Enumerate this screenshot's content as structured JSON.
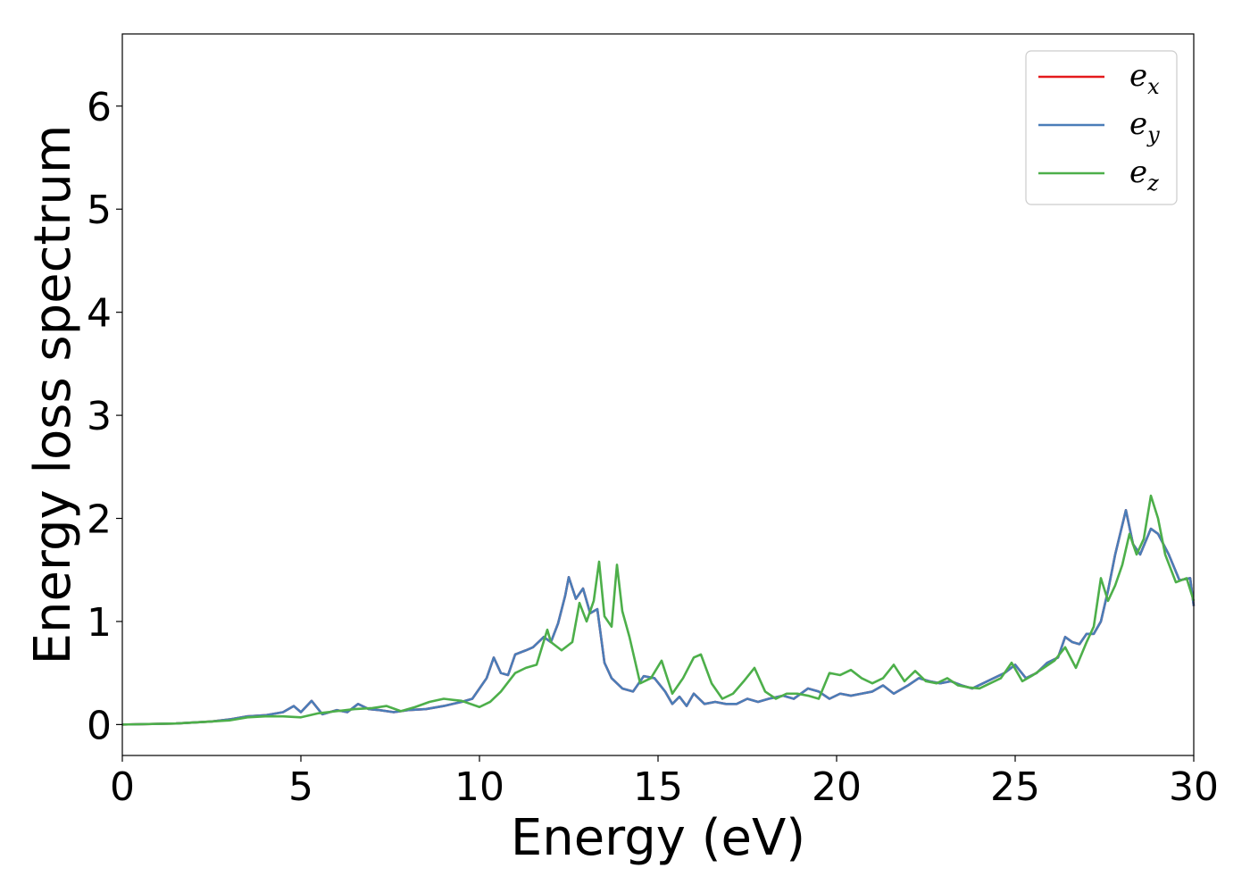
{
  "chart_data": {
    "type": "line",
    "title": "",
    "xlabel": "Energy (eV)",
    "ylabel": "Energy loss spectrum",
    "xlim": [
      0,
      30
    ],
    "ylim": [
      -0.3,
      6.7
    ],
    "xticks": [
      0,
      5,
      10,
      15,
      20,
      25,
      30
    ],
    "yticks": [
      0,
      1,
      2,
      3,
      4,
      5,
      6
    ],
    "grid": false,
    "legend_position": "top-right",
    "series": [
      {
        "name": "e_x",
        "legend_base": "e",
        "legend_sub": "x",
        "color": "#e41a1c",
        "x": [
          0,
          1.5,
          2.5,
          3.0,
          3.5,
          4.0,
          4.5,
          4.8,
          5.0,
          5.3,
          5.6,
          6.0,
          6.3,
          6.6,
          6.9,
          7.2,
          7.6,
          8.0,
          8.5,
          9.0,
          9.5,
          9.8,
          10.0,
          10.2,
          10.4,
          10.6,
          10.8,
          11.0,
          11.3,
          11.5,
          11.8,
          12.0,
          12.2,
          12.4,
          12.5,
          12.7,
          12.9,
          13.1,
          13.3,
          13.5,
          13.7,
          14.0,
          14.3,
          14.6,
          14.9,
          15.2,
          15.4,
          15.6,
          15.8,
          16.0,
          16.3,
          16.6,
          16.9,
          17.2,
          17.5,
          17.8,
          18.1,
          18.5,
          18.8,
          19.2,
          19.5,
          19.8,
          20.1,
          20.4,
          20.7,
          21.0,
          21.3,
          21.6,
          22.0,
          22.3,
          22.6,
          22.9,
          23.2,
          23.5,
          23.8,
          24.1,
          24.4,
          24.7,
          25.0,
          25.3,
          25.6,
          25.9,
          26.2,
          26.4,
          26.6,
          26.8,
          27.0,
          27.2,
          27.4,
          27.6,
          27.8,
          28.1,
          28.3,
          28.5,
          28.8,
          29.0,
          29.3,
          29.6,
          29.9,
          30.0
        ],
        "y": [
          0,
          0.01,
          0.03,
          0.05,
          0.08,
          0.09,
          0.12,
          0.18,
          0.12,
          0.23,
          0.1,
          0.14,
          0.12,
          0.2,
          0.15,
          0.14,
          0.12,
          0.14,
          0.15,
          0.18,
          0.22,
          0.25,
          0.35,
          0.45,
          0.65,
          0.5,
          0.48,
          0.68,
          0.72,
          0.75,
          0.85,
          0.8,
          0.98,
          1.25,
          1.43,
          1.22,
          1.32,
          1.08,
          1.12,
          0.6,
          0.45,
          0.35,
          0.32,
          0.47,
          0.45,
          0.32,
          0.2,
          0.27,
          0.18,
          0.3,
          0.2,
          0.22,
          0.2,
          0.2,
          0.25,
          0.22,
          0.25,
          0.28,
          0.25,
          0.35,
          0.32,
          0.25,
          0.3,
          0.28,
          0.3,
          0.32,
          0.38,
          0.3,
          0.38,
          0.45,
          0.42,
          0.4,
          0.42,
          0.38,
          0.35,
          0.4,
          0.45,
          0.5,
          0.58,
          0.45,
          0.5,
          0.6,
          0.65,
          0.85,
          0.8,
          0.78,
          0.88,
          0.88,
          1.0,
          1.3,
          1.65,
          2.08,
          1.75,
          1.65,
          1.9,
          1.85,
          1.65,
          1.4,
          1.42,
          1.15
        ]
      },
      {
        "name": "e_y",
        "legend_base": "e",
        "legend_sub": "y",
        "color": "#4a7db8",
        "x": [
          0,
          1.5,
          2.5,
          3.0,
          3.5,
          4.0,
          4.5,
          4.8,
          5.0,
          5.3,
          5.6,
          6.0,
          6.3,
          6.6,
          6.9,
          7.2,
          7.6,
          8.0,
          8.5,
          9.0,
          9.5,
          9.8,
          10.0,
          10.2,
          10.4,
          10.6,
          10.8,
          11.0,
          11.3,
          11.5,
          11.8,
          12.0,
          12.2,
          12.4,
          12.5,
          12.7,
          12.9,
          13.1,
          13.3,
          13.5,
          13.7,
          14.0,
          14.3,
          14.6,
          14.9,
          15.2,
          15.4,
          15.6,
          15.8,
          16.0,
          16.3,
          16.6,
          16.9,
          17.2,
          17.5,
          17.8,
          18.1,
          18.5,
          18.8,
          19.2,
          19.5,
          19.8,
          20.1,
          20.4,
          20.7,
          21.0,
          21.3,
          21.6,
          22.0,
          22.3,
          22.6,
          22.9,
          23.2,
          23.5,
          23.8,
          24.1,
          24.4,
          24.7,
          25.0,
          25.3,
          25.6,
          25.9,
          26.2,
          26.4,
          26.6,
          26.8,
          27.0,
          27.2,
          27.4,
          27.6,
          27.8,
          28.1,
          28.3,
          28.5,
          28.8,
          29.0,
          29.3,
          29.6,
          29.9,
          30.0
        ],
        "y": [
          0,
          0.01,
          0.03,
          0.05,
          0.08,
          0.09,
          0.12,
          0.18,
          0.12,
          0.23,
          0.1,
          0.14,
          0.12,
          0.2,
          0.15,
          0.14,
          0.12,
          0.14,
          0.15,
          0.18,
          0.22,
          0.25,
          0.35,
          0.45,
          0.65,
          0.5,
          0.48,
          0.68,
          0.72,
          0.75,
          0.85,
          0.8,
          0.98,
          1.25,
          1.43,
          1.22,
          1.32,
          1.08,
          1.12,
          0.6,
          0.45,
          0.35,
          0.32,
          0.47,
          0.45,
          0.32,
          0.2,
          0.27,
          0.18,
          0.3,
          0.2,
          0.22,
          0.2,
          0.2,
          0.25,
          0.22,
          0.25,
          0.28,
          0.25,
          0.35,
          0.32,
          0.25,
          0.3,
          0.28,
          0.3,
          0.32,
          0.38,
          0.3,
          0.38,
          0.45,
          0.42,
          0.4,
          0.42,
          0.38,
          0.35,
          0.4,
          0.45,
          0.5,
          0.58,
          0.45,
          0.5,
          0.6,
          0.65,
          0.85,
          0.8,
          0.78,
          0.88,
          0.88,
          1.0,
          1.3,
          1.65,
          2.08,
          1.75,
          1.65,
          1.9,
          1.85,
          1.65,
          1.4,
          1.42,
          1.15
        ]
      },
      {
        "name": "e_z",
        "legend_base": "e",
        "legend_sub": "z",
        "color": "#4daf4a",
        "x": [
          0,
          1.5,
          2.5,
          3.0,
          3.5,
          4.0,
          4.5,
          5.0,
          5.5,
          6.0,
          6.5,
          7.0,
          7.4,
          7.8,
          8.2,
          8.6,
          9.0,
          9.5,
          10.0,
          10.3,
          10.6,
          11.0,
          11.3,
          11.6,
          11.9,
          12.0,
          12.3,
          12.6,
          12.8,
          13.0,
          13.2,
          13.35,
          13.5,
          13.7,
          13.85,
          14.0,
          14.2,
          14.5,
          14.8,
          15.1,
          15.4,
          15.7,
          16.0,
          16.2,
          16.5,
          16.8,
          17.1,
          17.4,
          17.7,
          18.0,
          18.3,
          18.6,
          18.9,
          19.2,
          19.5,
          19.8,
          20.1,
          20.4,
          20.7,
          21.0,
          21.3,
          21.6,
          21.9,
          22.2,
          22.5,
          22.8,
          23.1,
          23.4,
          23.7,
          24.0,
          24.3,
          24.6,
          24.9,
          25.2,
          25.5,
          25.8,
          26.1,
          26.4,
          26.7,
          27.0,
          27.2,
          27.4,
          27.6,
          27.8,
          28.0,
          28.2,
          28.4,
          28.6,
          28.8,
          29.0,
          29.2,
          29.5,
          29.8,
          30.0
        ],
        "y": [
          0,
          0.01,
          0.03,
          0.04,
          0.07,
          0.08,
          0.08,
          0.07,
          0.11,
          0.13,
          0.15,
          0.16,
          0.18,
          0.13,
          0.17,
          0.22,
          0.25,
          0.23,
          0.17,
          0.22,
          0.32,
          0.5,
          0.55,
          0.58,
          0.92,
          0.8,
          0.72,
          0.8,
          1.18,
          1.0,
          1.2,
          1.58,
          1.05,
          0.95,
          1.55,
          1.1,
          0.85,
          0.4,
          0.45,
          0.62,
          0.3,
          0.45,
          0.65,
          0.68,
          0.4,
          0.25,
          0.3,
          0.42,
          0.55,
          0.32,
          0.25,
          0.3,
          0.3,
          0.28,
          0.25,
          0.5,
          0.48,
          0.53,
          0.45,
          0.4,
          0.45,
          0.58,
          0.42,
          0.52,
          0.42,
          0.4,
          0.45,
          0.38,
          0.36,
          0.35,
          0.4,
          0.45,
          0.6,
          0.42,
          0.48,
          0.55,
          0.62,
          0.75,
          0.55,
          0.8,
          0.95,
          1.42,
          1.2,
          1.35,
          1.55,
          1.85,
          1.65,
          1.8,
          2.22,
          2.0,
          1.65,
          1.38,
          1.42,
          1.2
        ]
      }
    ]
  }
}
